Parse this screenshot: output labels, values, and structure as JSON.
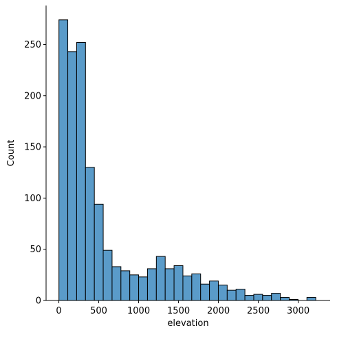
{
  "chart_data": {
    "type": "bar",
    "subtype": "histogram",
    "xlabel": "elevation",
    "ylabel": "Count",
    "xlim": [
      -160,
      3400
    ],
    "ylim": [
      0,
      288
    ],
    "bin_width": 111,
    "bin_start": 1,
    "bins": [
      {
        "x0": 1,
        "x1": 112,
        "count": 274
      },
      {
        "x0": 112,
        "x1": 223,
        "count": 243
      },
      {
        "x0": 223,
        "x1": 334,
        "count": 252
      },
      {
        "x0": 334,
        "x1": 445,
        "count": 130
      },
      {
        "x0": 445,
        "x1": 556,
        "count": 94
      },
      {
        "x0": 556,
        "x1": 667,
        "count": 49
      },
      {
        "x0": 667,
        "x1": 778,
        "count": 33
      },
      {
        "x0": 778,
        "x1": 889,
        "count": 29
      },
      {
        "x0": 889,
        "x1": 1000,
        "count": 25
      },
      {
        "x0": 1000,
        "x1": 1111,
        "count": 23
      },
      {
        "x0": 1111,
        "x1": 1222,
        "count": 31
      },
      {
        "x0": 1222,
        "x1": 1333,
        "count": 43
      },
      {
        "x0": 1333,
        "x1": 1444,
        "count": 31
      },
      {
        "x0": 1444,
        "x1": 1555,
        "count": 34
      },
      {
        "x0": 1555,
        "x1": 1666,
        "count": 24
      },
      {
        "x0": 1666,
        "x1": 1777,
        "count": 26
      },
      {
        "x0": 1777,
        "x1": 1888,
        "count": 16
      },
      {
        "x0": 1888,
        "x1": 1999,
        "count": 19
      },
      {
        "x0": 1999,
        "x1": 2110,
        "count": 15
      },
      {
        "x0": 2110,
        "x1": 2221,
        "count": 10
      },
      {
        "x0": 2221,
        "x1": 2332,
        "count": 11
      },
      {
        "x0": 2332,
        "x1": 2443,
        "count": 5
      },
      {
        "x0": 2443,
        "x1": 2554,
        "count": 6
      },
      {
        "x0": 2554,
        "x1": 2665,
        "count": 5
      },
      {
        "x0": 2665,
        "x1": 2776,
        "count": 7
      },
      {
        "x0": 2776,
        "x1": 2887,
        "count": 3
      },
      {
        "x0": 2887,
        "x1": 2998,
        "count": 1
      },
      {
        "x0": 2998,
        "x1": 3109,
        "count": 0
      },
      {
        "x0": 3109,
        "x1": 3220,
        "count": 3
      }
    ],
    "xticks": [
      0,
      500,
      1000,
      1500,
      2000,
      2500,
      3000
    ],
    "xtick_labels": [
      "0",
      "500",
      "1000",
      "1500",
      "2000",
      "2500",
      "3000"
    ],
    "yticks": [
      0,
      50,
      100,
      150,
      200,
      250
    ],
    "ytick_labels": [
      "0",
      "50",
      "100",
      "150",
      "200",
      "250"
    ],
    "grid": false,
    "spines": "left-bottom",
    "bar_color": "#5a9bc9",
    "edge_color": "#000000"
  }
}
